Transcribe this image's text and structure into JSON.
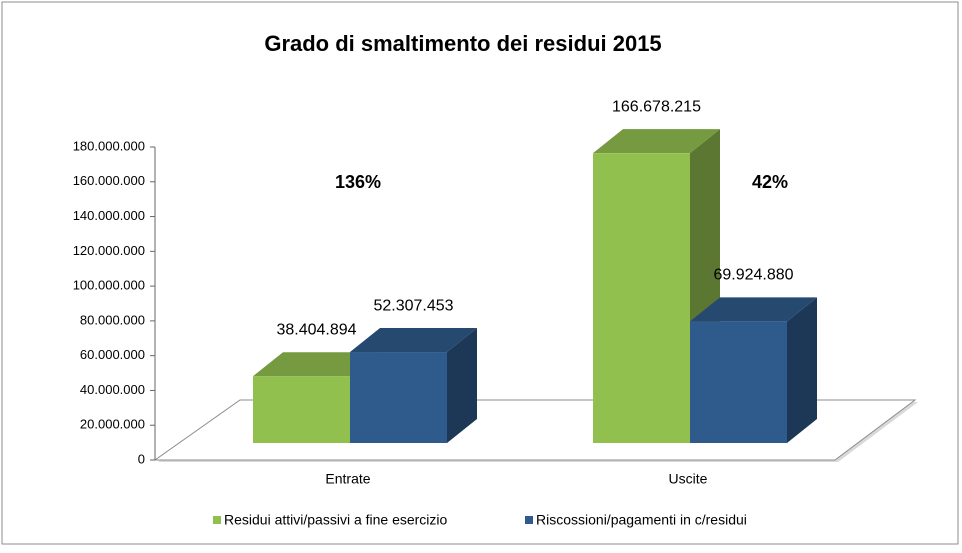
{
  "chart_data": {
    "type": "bar3d",
    "title": "Grado di smaltimento dei residui 2015",
    "categories": [
      "Entrate",
      "Uscite"
    ],
    "series": [
      {
        "name": "Residui attivi/passivi a fine esercizio",
        "color": "#92c04f",
        "values": [
          38404894,
          166678215
        ],
        "value_labels": [
          "38.404.894",
          "166.678.215"
        ]
      },
      {
        "name": "Riscossioni/pagamenti in c/residui",
        "color": "#2f5b8c",
        "values": [
          52307453,
          69924880
        ],
        "value_labels": [
          "52.307.453",
          "69.924.880"
        ]
      }
    ],
    "annotations": [
      "136%",
      "42%"
    ],
    "ylim": [
      0,
      180000000
    ],
    "yticks": [
      0,
      {
        "value": 20000000,
        "label": "20.000.000"
      },
      {
        "value": 40000000,
        "label": "40.000.000"
      },
      {
        "value": 60000000,
        "label": "60.000.000"
      },
      {
        "value": 80000000,
        "label": "80.000.000"
      },
      {
        "value": 100000000,
        "label": "100.000.000"
      },
      {
        "value": 120000000,
        "label": "120.000.000"
      },
      {
        "value": 140000000,
        "label": "140.000.000"
      },
      {
        "value": 160000000,
        "label": "160.000.000"
      },
      {
        "value": 180000000,
        "label": "180.000.000"
      }
    ],
    "legend": "bottom"
  }
}
